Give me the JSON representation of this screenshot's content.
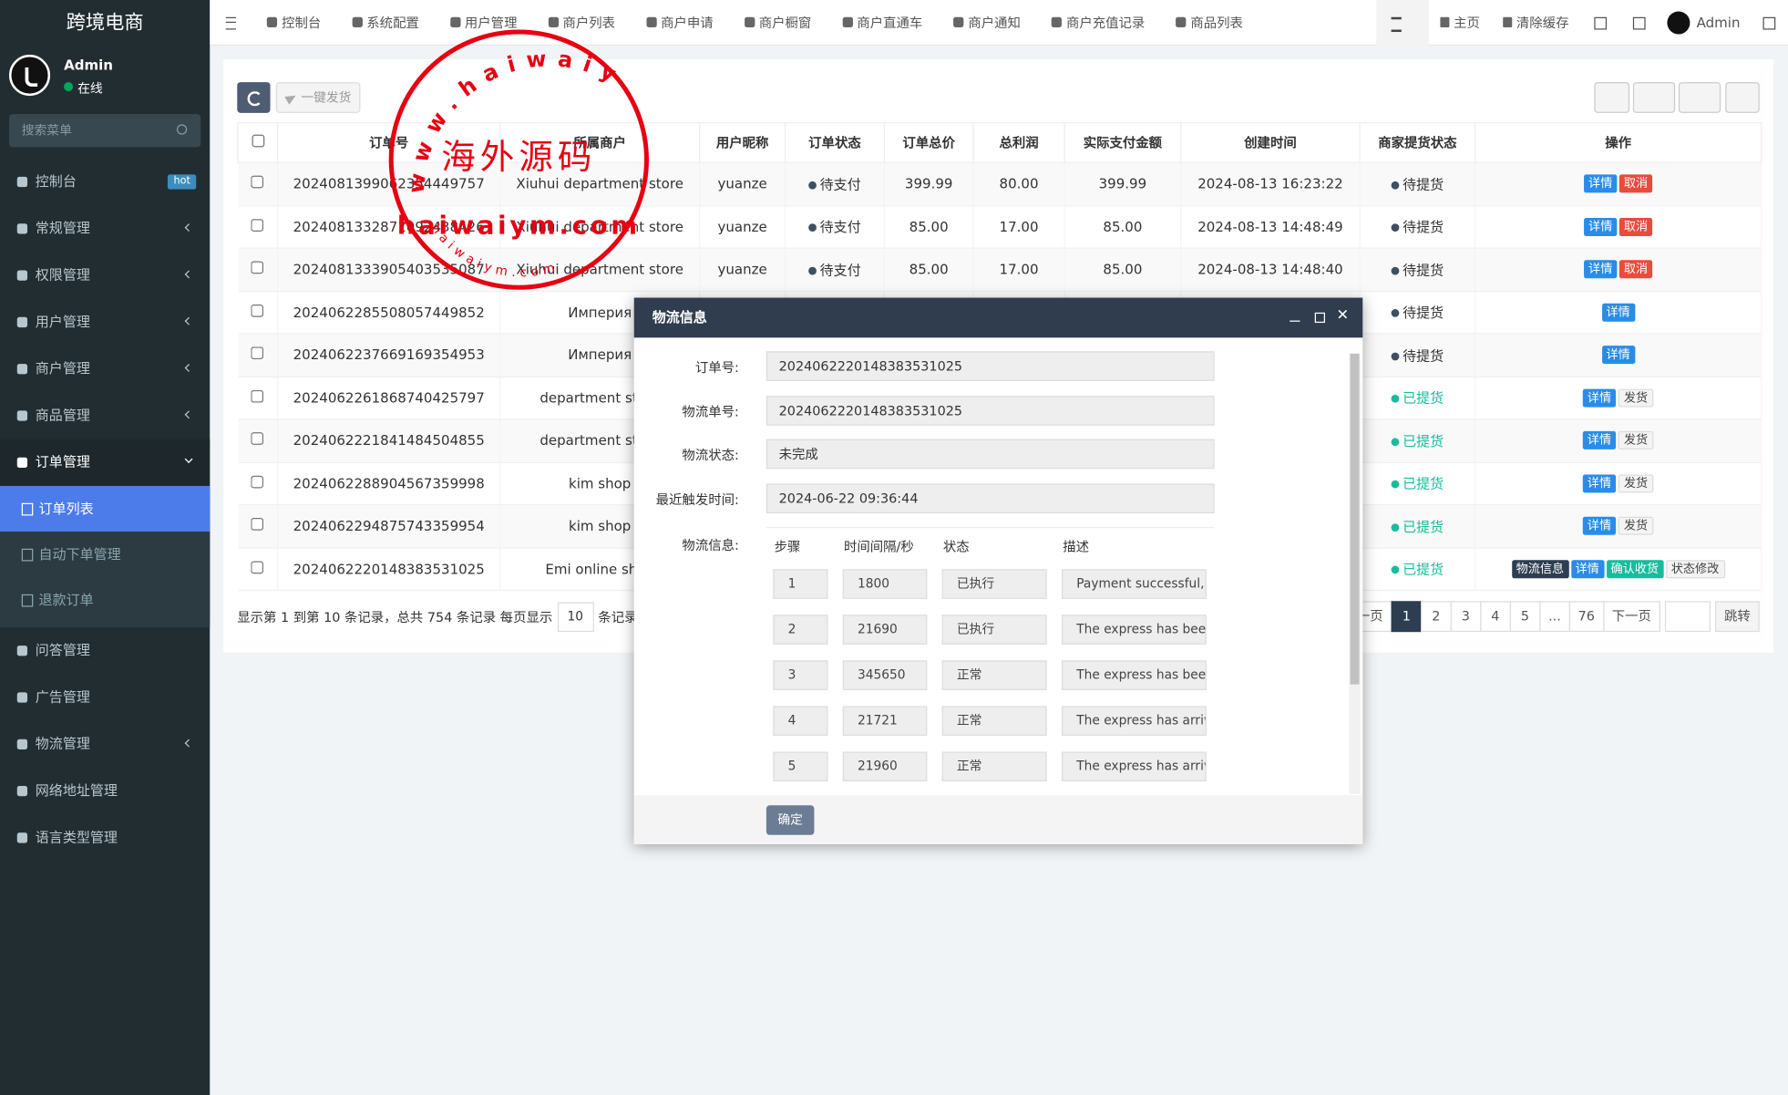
{
  "sidebar": {
    "brand": "跨境电商",
    "user": {
      "name": "Admin",
      "status": "在线"
    },
    "search_placeholder": "搜索菜单",
    "menu": [
      {
        "label": "控制台",
        "badge": "hot"
      },
      {
        "label": "常规管理"
      },
      {
        "label": "权限管理"
      },
      {
        "label": "用户管理"
      },
      {
        "label": "商户管理"
      },
      {
        "label": "商品管理"
      },
      {
        "label": "订单管理",
        "open": true,
        "children": [
          {
            "label": "订单列表",
            "active": true
          },
          {
            "label": "自动下单管理"
          },
          {
            "label": "退款订单"
          }
        ]
      },
      {
        "label": "问答管理"
      },
      {
        "label": "广告管理"
      },
      {
        "label": "物流管理"
      },
      {
        "label": "网络地址管理"
      },
      {
        "label": "语言类型管理"
      }
    ]
  },
  "topbar": {
    "nav": [
      "控制台",
      "系统配置",
      "用户管理",
      "商户列表",
      "商户申请",
      "商户橱窗",
      "商户直通车",
      "商户通知",
      "商户充值记录",
      "商品列表"
    ],
    "right": [
      "主页",
      "清除缓存"
    ],
    "user": "Admin"
  },
  "toolbar": {
    "batch_ship": "一键发货"
  },
  "table": {
    "headers": [
      "订单号",
      "所属商户",
      "用户昵称",
      "订单状态",
      "订单总价",
      "总利润",
      "实际支付金额",
      "创建时间",
      "商家提货状态",
      "操作"
    ],
    "rows": [
      {
        "cells": [
          "2024081399062354449757",
          "Xiuhui department store",
          "yuanze",
          "待支付",
          "399.99",
          "80.00",
          "399.99",
          "2024-08-13 16:23:22",
          "待提货"
        ],
        "pickup_done": false,
        "actions": [
          {
            "label": "详情",
            "style": "info"
          },
          {
            "label": "取消",
            "style": "danger"
          }
        ]
      },
      {
        "cells": [
          "2024081332871092438426",
          "Xiuhui department store",
          "yuanze",
          "待支付",
          "85.00",
          "17.00",
          "85.00",
          "2024-08-13 14:48:49",
          "待提货"
        ],
        "pickup_done": false,
        "actions": [
          {
            "label": "详情",
            "style": "info"
          },
          {
            "label": "取消",
            "style": "danger"
          }
        ]
      },
      {
        "cells": [
          "2024081333905403535087",
          "Xiuhui department store",
          "yuanze",
          "待支付",
          "85.00",
          "17.00",
          "85.00",
          "2024-08-13 14:48:40",
          "待提货"
        ],
        "pickup_done": false,
        "actions": [
          {
            "label": "详情",
            "style": "info"
          },
          {
            "label": "取消",
            "style": "danger"
          }
        ]
      },
      {
        "cells": [
          "2024062285508057449852",
          "Империя",
          null,
          null,
          null,
          null,
          null,
          null,
          "待提货"
        ],
        "pickup_done": false,
        "actions": [
          {
            "label": "详情",
            "style": "info"
          }
        ]
      },
      {
        "cells": [
          "2024062237669169354953",
          "Империя",
          null,
          null,
          null,
          null,
          null,
          null,
          "待提货"
        ],
        "pickup_done": false,
        "actions": [
          {
            "label": "详情",
            "style": "info"
          }
        ]
      },
      {
        "cells": [
          "2024062261868740425797",
          "department store",
          null,
          null,
          null,
          null,
          null,
          null,
          "已提货"
        ],
        "pickup_done": true,
        "actions": [
          {
            "label": "详情",
            "style": "info"
          },
          {
            "label": "发货",
            "style": "default"
          }
        ]
      },
      {
        "cells": [
          "2024062221841484504855",
          "department store",
          null,
          null,
          null,
          null,
          null,
          null,
          "已提货"
        ],
        "pickup_done": true,
        "actions": [
          {
            "label": "详情",
            "style": "info"
          },
          {
            "label": "发货",
            "style": "default"
          }
        ]
      },
      {
        "cells": [
          "2024062288904567359998",
          "kim shop",
          null,
          null,
          null,
          null,
          null,
          null,
          "已提货"
        ],
        "pickup_done": true,
        "actions": [
          {
            "label": "详情",
            "style": "info"
          },
          {
            "label": "发货",
            "style": "default"
          }
        ]
      },
      {
        "cells": [
          "2024062294875743359954",
          "kim shop",
          null,
          null,
          null,
          null,
          null,
          null,
          "已提货"
        ],
        "pickup_done": true,
        "actions": [
          {
            "label": "详情",
            "style": "info"
          },
          {
            "label": "发货",
            "style": "default"
          }
        ]
      },
      {
        "cells": [
          "2024062220148383531025",
          "Emi online shop",
          null,
          null,
          null,
          null,
          null,
          null,
          "已提货"
        ],
        "pickup_done": true,
        "actions": [
          {
            "label": "物流信息",
            "style": "dark"
          },
          {
            "label": "详情",
            "style": "info"
          },
          {
            "label": "确认收货",
            "style": "success"
          },
          {
            "label": "状态修改",
            "style": "default"
          }
        ]
      }
    ]
  },
  "pagination": {
    "info_prefix": "显示第 1 到第 10 条记录，总共 754 条记录 每页显示",
    "page_size": "10",
    "info_suffix": "条记录",
    "prev": "上一页",
    "pages": [
      1,
      2,
      3,
      4,
      5,
      "...",
      76
    ],
    "current": 1,
    "next": "下一页",
    "jump": "跳转"
  },
  "modal": {
    "title": "物流信息",
    "fields": [
      {
        "label": "订单号:",
        "value": "2024062220148383531025"
      },
      {
        "label": "物流单号:",
        "value": "2024062220148383531025"
      },
      {
        "label": "物流状态:",
        "value": "未完成"
      },
      {
        "label": "最近触发时间:",
        "value": "2024-06-22 09:36:44"
      }
    ],
    "logistics_label": "物流信息:",
    "step_headers": [
      "步骤",
      "时间间隔/秒",
      "状态",
      "描述"
    ],
    "steps": [
      [
        1,
        1800,
        "已执行",
        "Payment successful, w"
      ],
      [
        2,
        21690,
        "已执行",
        "The express has been"
      ],
      [
        3,
        345650,
        "正常",
        "The express has been"
      ],
      [
        4,
        21721,
        "正常",
        "The express has arrive"
      ],
      [
        5,
        21960,
        "正常",
        "The express has arrive"
      ]
    ],
    "confirm": "确定"
  },
  "watermark": {
    "ring_top": "www.haiwaiym.com",
    "center": "海外源码",
    "middle": "haiwaiym.com",
    "ring_bottom": "haiwaiym.com"
  }
}
